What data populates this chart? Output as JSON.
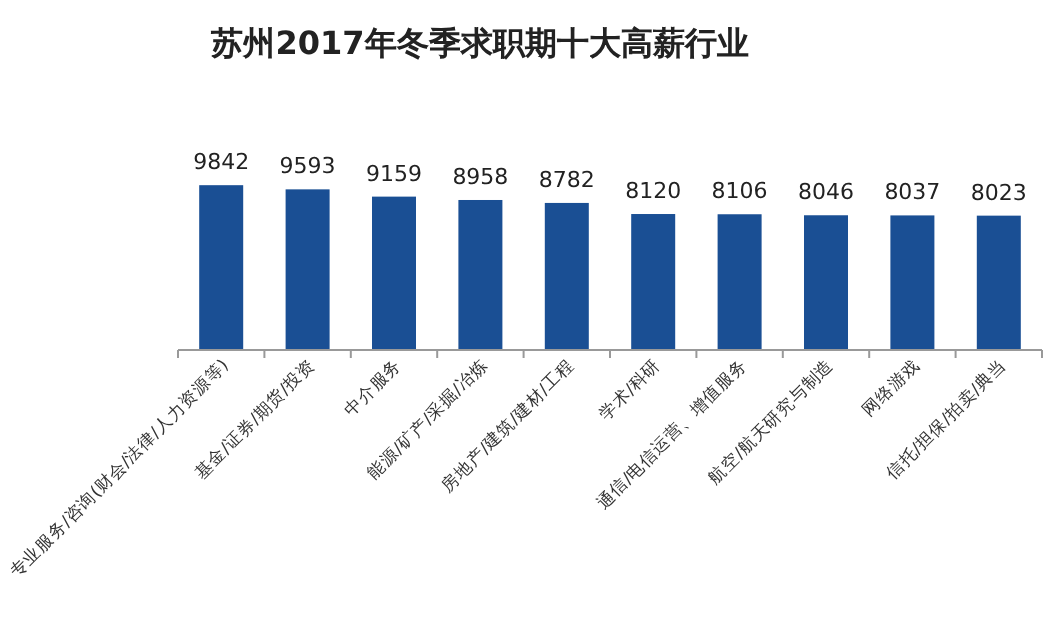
{
  "chart_data": {
    "type": "bar",
    "title": "苏州2017年冬季求职期十大高薪行业",
    "categories": [
      "专业服务/咨询(财会/法律/人力资源等)",
      "基金/证券/期货/投资",
      "中介服务",
      "能源/矿产/采掘/冶炼",
      "房地产/建筑/建材/工程",
      "学术/科研",
      "通信/电信运营、增值服务",
      "航空/航天研究与制造",
      "网络游戏",
      "信托/担保/拍卖/典当"
    ],
    "values": [
      9842,
      9593,
      9159,
      8958,
      8782,
      8120,
      8106,
      8046,
      8037,
      8023
    ],
    "color": "#1a4f94",
    "data_labels": true,
    "tick_labels": "x"
  }
}
